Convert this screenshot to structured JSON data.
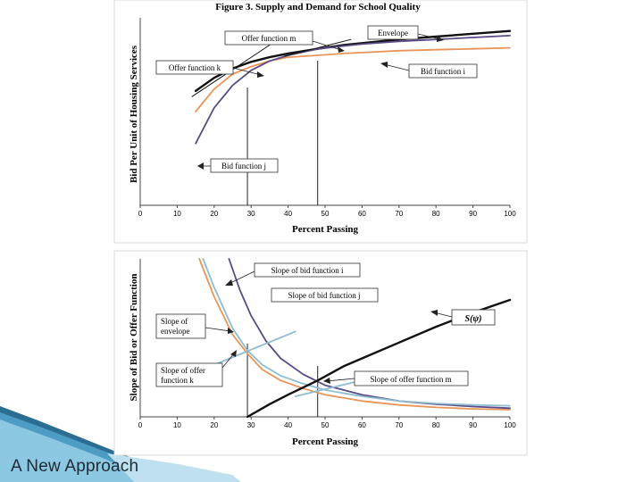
{
  "footer_title": "A New Approach",
  "colors": {
    "black": "#111111",
    "orange": "#e8955a",
    "purple": "#5a4a85",
    "light_blue": "#8fbdd0"
  },
  "chart_data": [
    {
      "type": "line",
      "title": "Figure 3.  Supply and Demand for School Quality",
      "xlabel": "Percent Passing",
      "ylabel": "Bid Per Unit of Housing Services",
      "xlim": [
        0,
        100
      ],
      "xticks": [
        "0",
        "10",
        "20",
        "30",
        "40",
        "50",
        "60",
        "70",
        "80",
        "90",
        "100"
      ],
      "series": [
        {
          "name": "Envelope",
          "color": "#111111",
          "x": [
            15,
            20,
            25,
            30,
            35,
            40,
            48,
            55,
            60,
            70,
            80,
            90,
            100
          ],
          "y": [
            0.61,
            0.68,
            0.73,
            0.765,
            0.79,
            0.81,
            0.835,
            0.855,
            0.865,
            0.885,
            0.9,
            0.915,
            0.93
          ]
        },
        {
          "name": "Bid function i",
          "color": "#e8955a",
          "x": [
            15,
            20,
            25,
            30,
            35,
            40,
            48,
            55,
            60,
            70,
            80,
            90,
            100
          ],
          "y": [
            0.5,
            0.62,
            0.7,
            0.74,
            0.77,
            0.79,
            0.8,
            0.81,
            0.815,
            0.825,
            0.83,
            0.835,
            0.84
          ]
        },
        {
          "name": "Bid function j",
          "color": "#5a4a85",
          "x": [
            15,
            20,
            25,
            30,
            35,
            40,
            48,
            55,
            60,
            70,
            80,
            90,
            100
          ],
          "y": [
            0.33,
            0.52,
            0.64,
            0.72,
            0.77,
            0.8,
            0.835,
            0.85,
            0.86,
            0.875,
            0.885,
            0.895,
            0.905
          ]
        },
        {
          "name": "Offer function k",
          "color": "#111111",
          "x": [
            14,
            35
          ],
          "y": [
            0.58,
            0.855
          ]
        },
        {
          "name": "Offer function m",
          "color": "#111111",
          "x": [
            39,
            57
          ],
          "y": [
            0.795,
            0.885
          ]
        }
      ],
      "vlines": [
        29,
        48
      ],
      "annotations": [
        {
          "text": "Offer  function m"
        },
        {
          "text": "Envelope"
        },
        {
          "text": "Offer  function k"
        },
        {
          "text": "Bid function i"
        },
        {
          "text": "Bid function j"
        }
      ]
    },
    {
      "type": "line",
      "xlabel": "Percent Passing",
      "ylabel": "Slope of Bid or Offer Function",
      "xlim": [
        0,
        100
      ],
      "xticks": [
        "0",
        "10",
        "20",
        "30",
        "40",
        "50",
        "60",
        "70",
        "80",
        "90",
        "100"
      ],
      "series": [
        {
          "name": "Slope of bid function i",
          "color": "#e8955a",
          "x": [
            16,
            20,
            25,
            29,
            33,
            38,
            44,
            50,
            60,
            70,
            80,
            90,
            100
          ],
          "y": [
            1.0,
            0.76,
            0.52,
            0.4,
            0.3,
            0.23,
            0.18,
            0.14,
            0.1,
            0.075,
            0.06,
            0.05,
            0.045
          ]
        },
        {
          "name": "Slope of bid function j",
          "color": "#5a4a85",
          "x": [
            24,
            27,
            30,
            34,
            38,
            44,
            50,
            60,
            70,
            80,
            90,
            100
          ],
          "y": [
            1.0,
            0.8,
            0.64,
            0.48,
            0.37,
            0.27,
            0.2,
            0.14,
            0.1,
            0.08,
            0.065,
            0.055
          ]
        },
        {
          "name": "Slope of envelope",
          "color": "#8fbdd0",
          "x": [
            17,
            20,
            25,
            29,
            33,
            38,
            44,
            50,
            60,
            70,
            80,
            90,
            100
          ],
          "y": [
            1.0,
            0.82,
            0.56,
            0.42,
            0.33,
            0.26,
            0.21,
            0.17,
            0.13,
            0.1,
            0.085,
            0.075,
            0.07
          ]
        },
        {
          "name": "S(ψ)",
          "color": "#111111",
          "x": [
            29,
            35,
            40,
            48,
            55,
            60,
            70,
            80,
            90,
            100
          ],
          "y": [
            0.0,
            0.08,
            0.14,
            0.23,
            0.32,
            0.37,
            0.47,
            0.57,
            0.66,
            0.74
          ]
        },
        {
          "name": "Slope of offer function k",
          "color": "#8fbdd0",
          "x": [
            19,
            42
          ],
          "y": [
            0.32,
            0.54
          ]
        },
        {
          "name": "Slope of offer function m",
          "color": "#8fbdd0",
          "x": [
            42,
            58
          ],
          "y": [
            0.13,
            0.22
          ]
        }
      ],
      "vlines": [
        29,
        48
      ],
      "annotations": [
        {
          "text": "Slope of bid function i"
        },
        {
          "text": "Slope of bid function j"
        },
        {
          "text": "Slope of\nenvelope"
        },
        {
          "text": "S(ψ)"
        },
        {
          "text": "Slope of offer\nfunction k"
        },
        {
          "text": "Slope of offer function m"
        }
      ]
    }
  ]
}
